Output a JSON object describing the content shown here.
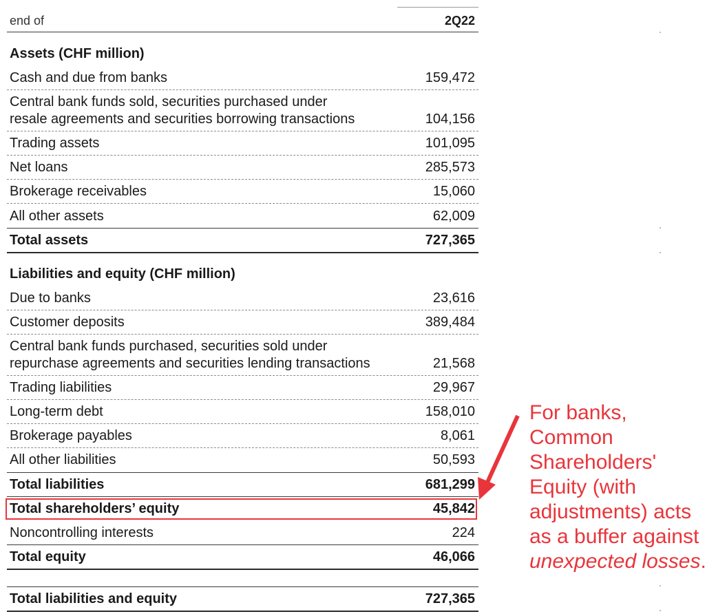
{
  "header": {
    "period_label": "end of",
    "period": "2Q22"
  },
  "assets": {
    "title": "Assets (CHF million)",
    "rows": [
      {
        "label": "Cash and due from banks",
        "value": "159,472"
      },
      {
        "label_1": "Central bank funds sold, securities purchased under",
        "label_2": "resale agreements and securities borrowing transactions",
        "value": "104,156"
      },
      {
        "label": "Trading assets",
        "value": "101,095"
      },
      {
        "label": "Net loans",
        "value": "285,573"
      },
      {
        "label": "Brokerage receivables",
        "value": "15,060"
      },
      {
        "label": "All other assets",
        "value": "62,009"
      }
    ],
    "total": {
      "label": "Total assets",
      "value": "727,365"
    }
  },
  "liabilities": {
    "title": "Liabilities and equity (CHF million)",
    "rows": [
      {
        "label": "Due to banks",
        "value": "23,616"
      },
      {
        "label": "Customer deposits",
        "value": "389,484"
      },
      {
        "label_1": "Central bank funds purchased, securities sold under",
        "label_2": "repurchase agreements and securities lending transactions",
        "value": "21,568"
      },
      {
        "label": "Trading liabilities",
        "value": "29,967"
      },
      {
        "label": "Long-term debt",
        "value": "158,010"
      },
      {
        "label": "Brokerage payables",
        "value": "8,061"
      },
      {
        "label": "All other liabilities",
        "value": "50,593"
      }
    ],
    "total": {
      "label": "Total liabilities",
      "value": "681,299"
    }
  },
  "equity": {
    "shareholders": {
      "label": "Total shareholders’ equity",
      "value": "45,842"
    },
    "noncontrolling": {
      "label": "Noncontrolling interests",
      "value": "224"
    },
    "total": {
      "label": "Total equity",
      "value": "46,066"
    }
  },
  "grand_total": {
    "label": "Total liabilities and equity",
    "value": "727,365"
  },
  "annotation": {
    "lines": [
      "For banks,",
      "Common",
      "Shareholders'",
      "Equity (with",
      "adjustments) acts",
      "as a buffer against"
    ],
    "emphasis": "unexpected losses",
    "end": ".",
    "color": "#e8353b"
  }
}
